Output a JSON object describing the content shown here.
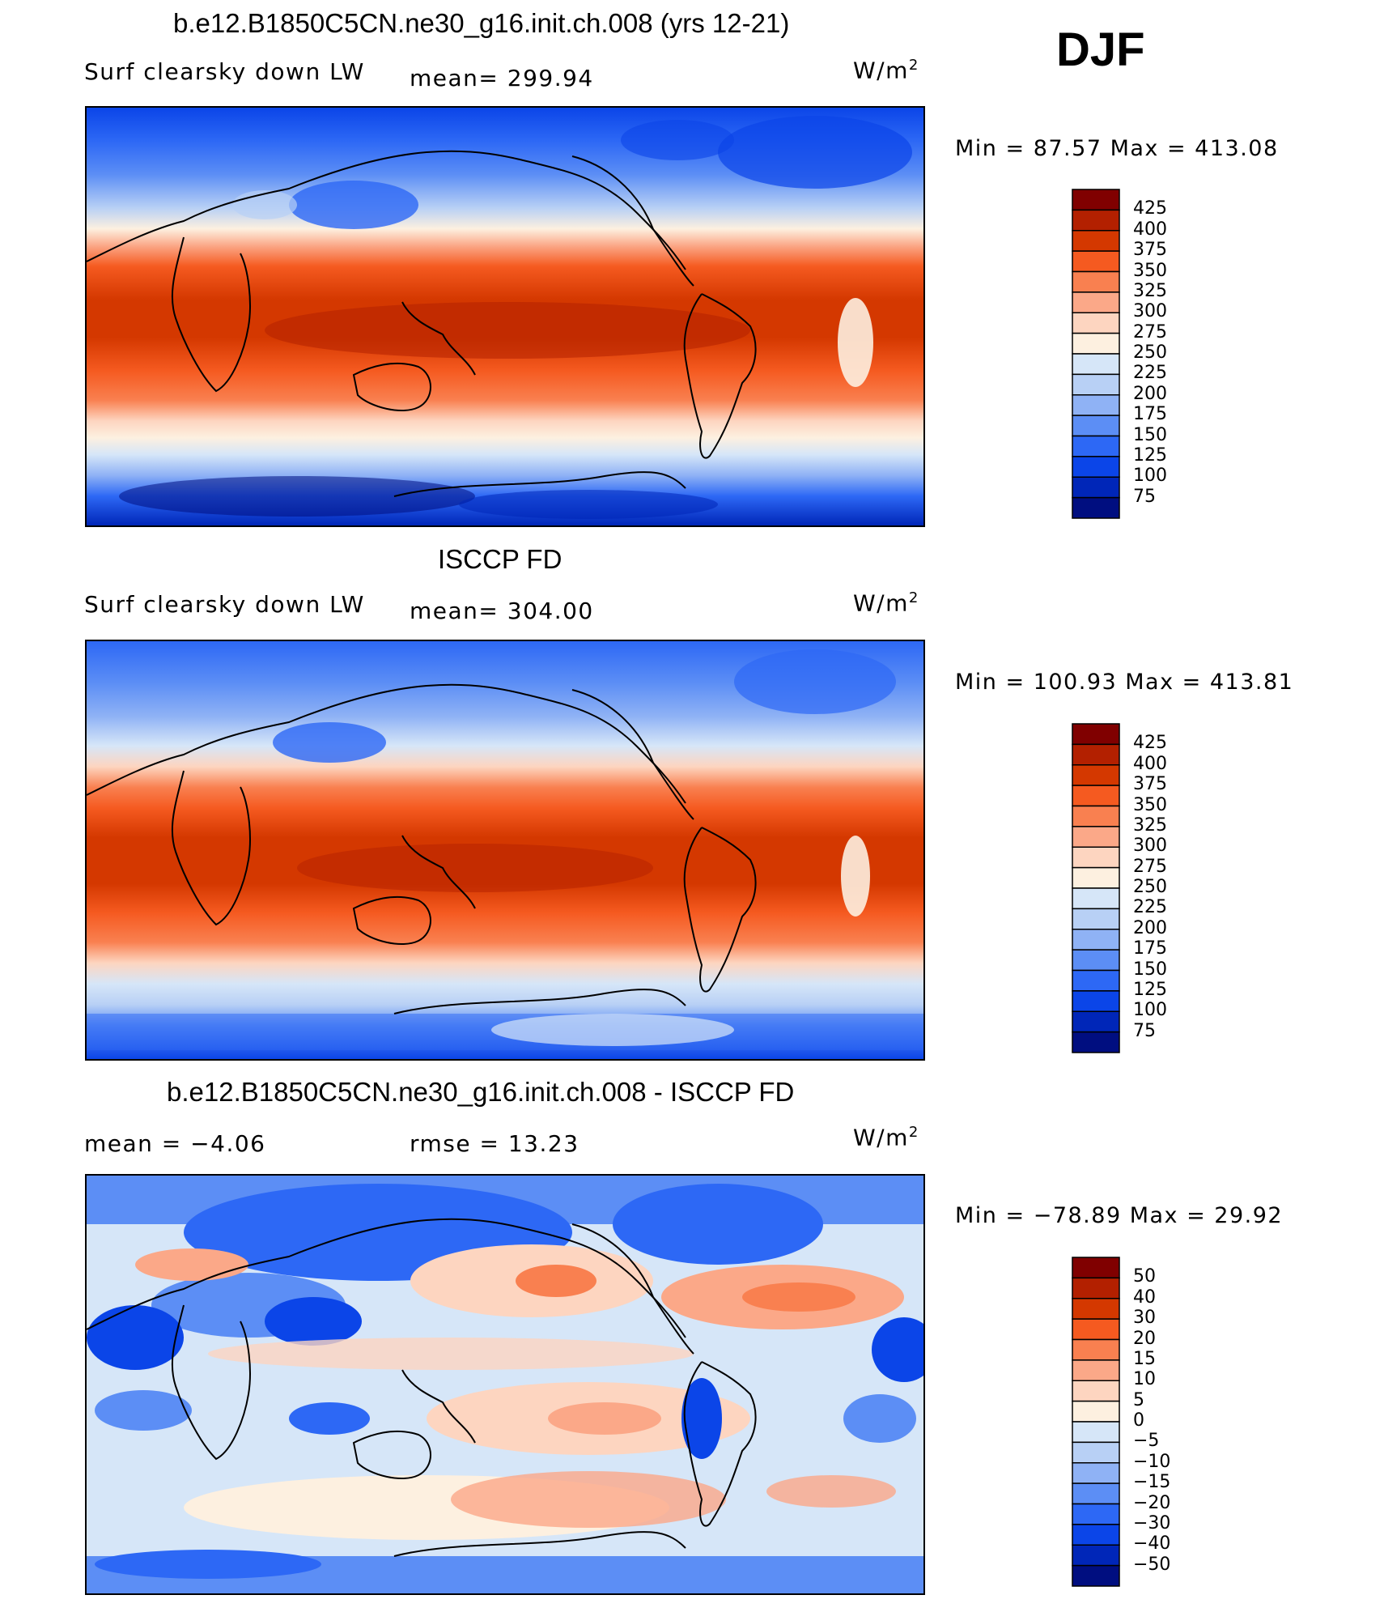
{
  "season": "DJF",
  "unit": "W/m",
  "unit_sup": "2",
  "panels": [
    {
      "id": "model",
      "title": "b.e12.B1850C5CN.ne30_g16.init.ch.008 (yrs 12-21)",
      "left_label": "Surf clearsky down LW",
      "center_label": "mean=  299.94",
      "minmax": "Min  =    87.57  Max  =  413.08",
      "colorbar_labels": [
        "425",
        "400",
        "375",
        "350",
        "325",
        "300",
        "275",
        "250",
        "225",
        "200",
        "175",
        "150",
        "125",
        "100",
        "75"
      ]
    },
    {
      "id": "obs",
      "title": "ISCCP FD",
      "left_label": "Surf clearsky down LW",
      "center_label": "mean=  304.00",
      "minmax": "Min  =  100.93  Max  =  413.81",
      "colorbar_labels": [
        "425",
        "400",
        "375",
        "350",
        "325",
        "300",
        "275",
        "250",
        "225",
        "200",
        "175",
        "150",
        "125",
        "100",
        "75"
      ]
    },
    {
      "id": "diff",
      "title": "b.e12.B1850C5CN.ne30_g16.init.ch.008 - ISCCP FD",
      "left_label": "mean  =     −4.06",
      "center_label": "rmse  =     13.23",
      "minmax": "Min  =  −78.89  Max  =     29.92",
      "colorbar_labels": [
        "50",
        "40",
        "30",
        "20",
        "15",
        "10",
        "5",
        "0",
        "−5",
        "−10",
        "−15",
        "−20",
        "−30",
        "−40",
        "−50"
      ]
    }
  ],
  "colors": {
    "abs_scale": [
      "#800000",
      "#b32000",
      "#d43800",
      "#f55a20",
      "#f98050",
      "#fba888",
      "#fdd5c0",
      "#fdf0e0",
      "#d6e6f8",
      "#b8d0f5",
      "#8fb2f5",
      "#5c8ef5",
      "#2d68f5",
      "#0b45e8",
      "#0026b8",
      "#000e80"
    ],
    "diff_scale": [
      "#800000",
      "#b32000",
      "#d43800",
      "#f55a20",
      "#f98050",
      "#fba888",
      "#fdd5c0",
      "#fdf0e0",
      "#d6e6f8",
      "#b8d0f5",
      "#8fb2f5",
      "#5c8ef5",
      "#2d68f5",
      "#0b45e8",
      "#0026b8",
      "#000e80"
    ]
  }
}
